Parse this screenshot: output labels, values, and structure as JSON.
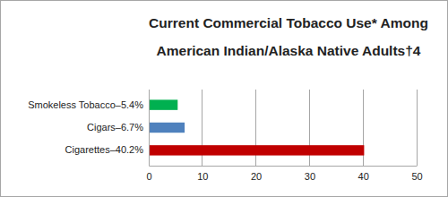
{
  "chart_data": {
    "type": "bar",
    "orientation": "horizontal",
    "title": [
      "Current Commercial Tobacco Use* Among",
      "American Indian/Alaska Native Adults†4"
    ],
    "categories": [
      "Smokeless Tobacco–5.4%",
      "Cigars–6.7%",
      "Cigarettes–40.2%"
    ],
    "values": [
      5.4,
      6.7,
      40.2
    ],
    "colors": [
      "#00b050",
      "#4f81bd",
      "#c00000"
    ],
    "xlim": [
      0,
      50
    ],
    "xticks": [
      0,
      10,
      20,
      30,
      40,
      50
    ],
    "grid": true
  }
}
